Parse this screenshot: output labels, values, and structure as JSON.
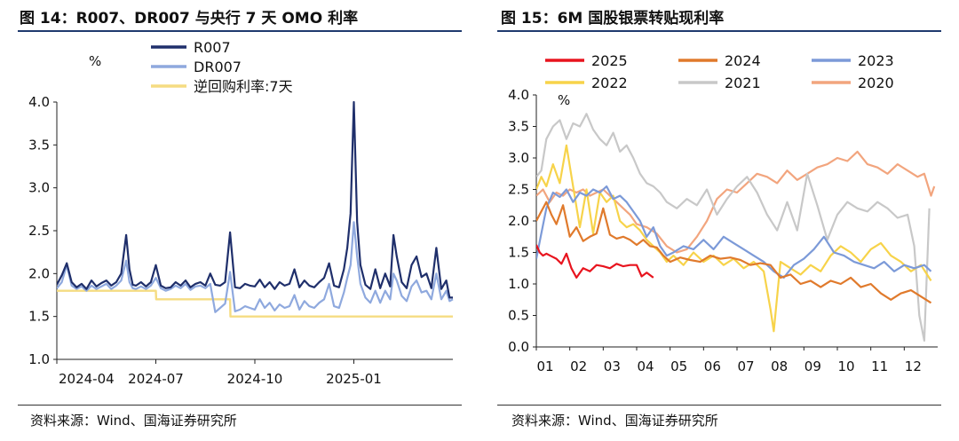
{
  "left_panel": {
    "title": "图 14：R007、DR007 与央行 7 天 OMO 利率",
    "source": "资料来源：Wind、国海证券研究所"
  },
  "right_panel": {
    "title": "图 15：6M 国股银票转贴现利率",
    "source": "资料来源：Wind、国海证券研究所"
  },
  "chart_data": [
    {
      "type": "line",
      "title": "图 14：R007、DR007 与央行 7 天 OMO 利率",
      "ylabel": "%",
      "ylim": [
        1.0,
        4.0
      ],
      "yticks": [
        "1.0",
        "1.5",
        "2.0",
        "2.5",
        "3.0",
        "3.5",
        "4.0"
      ],
      "xlim": [
        0,
        12
      ],
      "xtick_labels": [
        "2024-04",
        "2024-07",
        "2024-10",
        "2025-01"
      ],
      "xtick_pos": [
        0,
        3,
        6,
        9
      ],
      "legend_position": "top-center",
      "series": [
        {
          "name": "R007",
          "color": "#1f2f6b",
          "x": [
            0,
            0.15,
            0.3,
            0.45,
            0.6,
            0.75,
            0.9,
            1.05,
            1.2,
            1.35,
            1.5,
            1.65,
            1.8,
            1.95,
            2.1,
            2.2,
            2.3,
            2.4,
            2.55,
            2.7,
            2.85,
            3.0,
            3.15,
            3.3,
            3.45,
            3.6,
            3.75,
            3.9,
            4.05,
            4.2,
            4.35,
            4.5,
            4.65,
            4.8,
            4.95,
            5.1,
            5.25,
            5.4,
            5.55,
            5.7,
            5.85,
            6.0,
            6.15,
            6.3,
            6.45,
            6.6,
            6.75,
            6.9,
            7.05,
            7.2,
            7.35,
            7.5,
            7.65,
            7.8,
            7.95,
            8.1,
            8.25,
            8.4,
            8.55,
            8.7,
            8.8,
            8.9,
            9.0,
            9.1,
            9.2,
            9.35,
            9.5,
            9.65,
            9.8,
            9.95,
            10.1,
            10.2,
            10.3,
            10.45,
            10.6,
            10.75,
            10.9,
            11.05,
            11.2,
            11.35,
            11.5,
            11.65,
            11.8,
            11.9,
            12.0
          ],
          "values": [
            1.87,
            1.98,
            2.12,
            1.9,
            1.84,
            1.88,
            1.82,
            1.92,
            1.85,
            1.89,
            1.92,
            1.86,
            1.9,
            2.0,
            2.45,
            2.05,
            1.87,
            1.86,
            1.9,
            1.85,
            1.9,
            2.1,
            1.86,
            1.83,
            1.84,
            1.9,
            1.86,
            1.92,
            1.84,
            1.88,
            1.9,
            1.86,
            2.0,
            1.87,
            1.86,
            1.9,
            2.48,
            1.84,
            1.83,
            1.88,
            1.86,
            1.85,
            1.93,
            1.84,
            1.9,
            1.82,
            1.9,
            1.86,
            1.88,
            2.05,
            1.84,
            1.92,
            1.86,
            1.84,
            1.9,
            1.95,
            2.12,
            1.86,
            1.84,
            2.05,
            2.3,
            2.7,
            4.0,
            2.6,
            2.1,
            1.87,
            1.82,
            2.05,
            1.83,
            2.0,
            1.85,
            2.45,
            2.2,
            1.9,
            1.83,
            2.1,
            2.2,
            1.96,
            2.0,
            1.83,
            2.3,
            1.82,
            1.92,
            1.72,
            1.72
          ]
        },
        {
          "name": "DR007",
          "color": "#8fa9de",
          "x": [
            0,
            0.15,
            0.3,
            0.45,
            0.6,
            0.75,
            0.9,
            1.05,
            1.2,
            1.35,
            1.5,
            1.65,
            1.8,
            1.95,
            2.1,
            2.2,
            2.3,
            2.4,
            2.55,
            2.7,
            2.85,
            3.0,
            3.15,
            3.3,
            3.45,
            3.6,
            3.75,
            3.9,
            4.05,
            4.2,
            4.35,
            4.5,
            4.65,
            4.8,
            4.95,
            5.1,
            5.25,
            5.4,
            5.55,
            5.7,
            5.85,
            6.0,
            6.15,
            6.3,
            6.45,
            6.6,
            6.75,
            6.9,
            7.05,
            7.2,
            7.35,
            7.5,
            7.65,
            7.8,
            7.95,
            8.1,
            8.25,
            8.4,
            8.55,
            8.7,
            8.8,
            8.9,
            9.0,
            9.1,
            9.2,
            9.35,
            9.5,
            9.65,
            9.8,
            9.95,
            10.1,
            10.2,
            10.3,
            10.45,
            10.6,
            10.75,
            10.9,
            11.05,
            11.2,
            11.35,
            11.5,
            11.65,
            11.8,
            11.9,
            12.0
          ],
          "values": [
            1.83,
            1.9,
            2.1,
            1.86,
            1.82,
            1.85,
            1.8,
            1.86,
            1.82,
            1.85,
            1.88,
            1.82,
            1.86,
            1.92,
            2.15,
            1.9,
            1.83,
            1.82,
            1.85,
            1.82,
            1.86,
            1.95,
            1.83,
            1.8,
            1.82,
            1.86,
            1.83,
            1.88,
            1.81,
            1.85,
            1.86,
            1.83,
            1.88,
            1.55,
            1.6,
            1.65,
            2.02,
            1.56,
            1.58,
            1.62,
            1.6,
            1.58,
            1.7,
            1.6,
            1.66,
            1.57,
            1.64,
            1.6,
            1.62,
            1.75,
            1.58,
            1.68,
            1.62,
            1.6,
            1.66,
            1.7,
            1.88,
            1.62,
            1.6,
            1.78,
            1.95,
            2.1,
            2.6,
            2.2,
            1.88,
            1.72,
            1.66,
            1.8,
            1.66,
            1.8,
            1.7,
            2.0,
            1.92,
            1.74,
            1.68,
            1.85,
            1.92,
            1.78,
            1.8,
            1.7,
            2.0,
            1.7,
            1.8,
            1.68,
            1.7
          ]
        },
        {
          "name": "逆回购利率:7天",
          "color": "#f5dc82",
          "x": [
            0,
            3.0,
            3.01,
            5.25,
            5.26,
            12.0
          ],
          "values": [
            1.8,
            1.8,
            1.7,
            1.7,
            1.5,
            1.5
          ]
        }
      ]
    },
    {
      "type": "line",
      "title": "图 15：6M 国股银票转贴现利率",
      "ylabel": "%",
      "ylim": [
        0.0,
        4.0
      ],
      "yticks": [
        "0.0",
        "0.5",
        "1.0",
        "1.5",
        "2.0",
        "2.5",
        "3.0",
        "3.5",
        "4.0"
      ],
      "xlim": [
        0,
        12
      ],
      "xtick_labels": [
        "01",
        "02",
        "03",
        "04",
        "05",
        "06",
        "07",
        "08",
        "09",
        "10",
        "11",
        "12"
      ],
      "xtick_pos": [
        0,
        1,
        2,
        3,
        4,
        5,
        6,
        7,
        8,
        9,
        10,
        11
      ],
      "legend_position": "top",
      "series": [
        {
          "name": "2025",
          "color": "#e8141e",
          "x": [
            0,
            0.1,
            0.2,
            0.3,
            0.45,
            0.6,
            0.75,
            0.9,
            1.05,
            1.2,
            1.4,
            1.6,
            1.8,
            2.0,
            2.2,
            2.4,
            2.6,
            2.8,
            3.0,
            3.15,
            3.3,
            3.5
          ],
          "values": [
            1.62,
            1.5,
            1.45,
            1.48,
            1.44,
            1.4,
            1.32,
            1.48,
            1.25,
            1.1,
            1.25,
            1.2,
            1.3,
            1.28,
            1.25,
            1.32,
            1.28,
            1.3,
            1.3,
            1.12,
            1.18,
            1.1
          ]
        },
        {
          "name": "2024",
          "color": "#e07a2c",
          "x": [
            0,
            0.15,
            0.3,
            0.45,
            0.6,
            0.8,
            1.0,
            1.2,
            1.4,
            1.6,
            1.8,
            2.0,
            2.2,
            2.4,
            2.6,
            2.8,
            3.0,
            3.2,
            3.4,
            3.6,
            3.8,
            4.0,
            4.3,
            4.6,
            4.9,
            5.2,
            5.5,
            5.8,
            6.1,
            6.4,
            6.7,
            7.0,
            7.3,
            7.6,
            7.9,
            8.2,
            8.5,
            8.8,
            9.1,
            9.4,
            9.7,
            10.0,
            10.3,
            10.6,
            10.9,
            11.2,
            11.5,
            11.8
          ],
          "values": [
            2.0,
            2.15,
            2.3,
            2.1,
            1.95,
            2.25,
            1.75,
            1.9,
            1.68,
            1.75,
            1.8,
            2.2,
            1.78,
            1.72,
            1.75,
            1.7,
            1.62,
            1.7,
            1.6,
            1.58,
            1.45,
            1.35,
            1.42,
            1.38,
            1.35,
            1.45,
            1.4,
            1.42,
            1.38,
            1.3,
            1.33,
            1.3,
            1.1,
            1.15,
            1.0,
            1.05,
            0.95,
            1.05,
            1.0,
            1.1,
            0.95,
            1.0,
            0.85,
            0.75,
            0.85,
            0.9,
            0.8,
            0.7
          ]
        },
        {
          "name": "2023",
          "color": "#7c9ad8",
          "x": [
            0,
            0.15,
            0.3,
            0.5,
            0.7,
            0.9,
            1.1,
            1.3,
            1.5,
            1.7,
            1.9,
            2.1,
            2.3,
            2.5,
            2.7,
            2.9,
            3.1,
            3.3,
            3.5,
            3.7,
            3.9,
            4.1,
            4.4,
            4.7,
            5.0,
            5.3,
            5.6,
            5.9,
            6.2,
            6.5,
            6.8,
            7.1,
            7.4,
            7.7,
            8.0,
            8.3,
            8.6,
            8.9,
            9.2,
            9.5,
            9.8,
            10.1,
            10.4,
            10.7,
            11.0,
            11.3,
            11.6,
            11.8
          ],
          "values": [
            1.4,
            1.8,
            2.2,
            2.45,
            2.38,
            2.5,
            2.3,
            2.45,
            2.4,
            2.5,
            2.45,
            2.55,
            2.35,
            2.4,
            2.3,
            2.15,
            2.0,
            1.75,
            1.9,
            1.6,
            1.45,
            1.5,
            1.6,
            1.55,
            1.7,
            1.55,
            1.75,
            1.65,
            1.55,
            1.45,
            1.35,
            1.2,
            1.1,
            1.3,
            1.4,
            1.55,
            1.75,
            1.5,
            1.45,
            1.35,
            1.3,
            1.25,
            1.35,
            1.2,
            1.3,
            1.25,
            1.3,
            1.2
          ]
        },
        {
          "name": "2022",
          "color": "#f7d34a",
          "x": [
            0,
            0.15,
            0.3,
            0.5,
            0.7,
            0.9,
            1.1,
            1.3,
            1.5,
            1.7,
            1.9,
            2.1,
            2.3,
            2.5,
            2.7,
            2.9,
            3.1,
            3.3,
            3.5,
            3.7,
            3.9,
            4.1,
            4.4,
            4.7,
            5.0,
            5.3,
            5.6,
            5.9,
            6.2,
            6.5,
            6.8,
            7.0,
            7.1,
            7.3,
            7.6,
            7.9,
            8.2,
            8.5,
            8.8,
            9.1,
            9.4,
            9.7,
            10.0,
            10.3,
            10.6,
            10.9,
            11.2,
            11.5,
            11.8
          ],
          "values": [
            2.5,
            2.7,
            2.55,
            2.9,
            2.6,
            3.2,
            2.55,
            1.9,
            2.5,
            1.8,
            2.45,
            2.3,
            2.4,
            2.0,
            1.9,
            1.95,
            1.85,
            1.7,
            1.6,
            1.5,
            1.35,
            1.45,
            1.3,
            1.5,
            1.35,
            1.45,
            1.3,
            1.4,
            1.25,
            1.35,
            1.2,
            0.6,
            0.25,
            1.35,
            1.25,
            1.15,
            1.3,
            1.2,
            1.45,
            1.6,
            1.5,
            1.35,
            1.55,
            1.65,
            1.45,
            1.35,
            1.2,
            1.3,
            1.05
          ]
        },
        {
          "name": "2021",
          "color": "#c8c8c8",
          "x": [
            0,
            0.15,
            0.3,
            0.5,
            0.7,
            0.9,
            1.1,
            1.3,
            1.5,
            1.7,
            1.9,
            2.1,
            2.3,
            2.5,
            2.7,
            2.9,
            3.1,
            3.3,
            3.5,
            3.7,
            3.9,
            4.2,
            4.5,
            4.8,
            5.1,
            5.4,
            5.7,
            6.0,
            6.3,
            6.6,
            6.9,
            7.2,
            7.5,
            7.8,
            8.1,
            8.4,
            8.7,
            9.0,
            9.3,
            9.6,
            9.9,
            10.2,
            10.5,
            10.8,
            11.1,
            11.3,
            11.45,
            11.6,
            11.75
          ],
          "values": [
            2.7,
            2.8,
            3.3,
            3.5,
            3.6,
            3.3,
            3.55,
            3.5,
            3.7,
            3.45,
            3.3,
            3.2,
            3.4,
            3.1,
            3.2,
            3.0,
            2.75,
            2.6,
            2.55,
            2.45,
            2.3,
            2.2,
            2.35,
            2.25,
            2.5,
            2.1,
            2.35,
            2.55,
            2.7,
            2.45,
            2.1,
            1.85,
            2.3,
            1.85,
            2.75,
            2.25,
            1.7,
            2.1,
            2.3,
            2.2,
            2.15,
            2.3,
            2.2,
            2.05,
            2.1,
            1.6,
            0.5,
            0.1,
            2.2
          ]
        },
        {
          "name": "2020",
          "color": "#f2a57e",
          "x": [
            0,
            0.2,
            0.4,
            0.6,
            0.8,
            1.0,
            1.2,
            1.4,
            1.6,
            1.8,
            2.0,
            2.2,
            2.4,
            2.6,
            2.8,
            3.0,
            3.3,
            3.6,
            3.9,
            4.2,
            4.5,
            4.8,
            5.1,
            5.4,
            5.7,
            6.0,
            6.3,
            6.6,
            6.9,
            7.2,
            7.5,
            7.8,
            8.1,
            8.4,
            8.7,
            9.0,
            9.3,
            9.6,
            9.9,
            10.2,
            10.5,
            10.8,
            11.1,
            11.4,
            11.6,
            11.8,
            11.9
          ],
          "values": [
            2.4,
            2.5,
            2.3,
            2.45,
            2.4,
            2.5,
            2.45,
            2.5,
            2.4,
            2.45,
            2.5,
            2.4,
            2.3,
            2.2,
            2.1,
            1.95,
            1.9,
            1.8,
            1.6,
            1.5,
            1.55,
            1.75,
            2.0,
            2.35,
            2.5,
            2.45,
            2.6,
            2.75,
            2.7,
            2.6,
            2.8,
            2.65,
            2.75,
            2.85,
            2.9,
            3.0,
            2.95,
            3.1,
            2.9,
            2.85,
            2.75,
            2.9,
            2.8,
            2.7,
            2.75,
            2.4,
            2.55
          ]
        }
      ]
    }
  ]
}
